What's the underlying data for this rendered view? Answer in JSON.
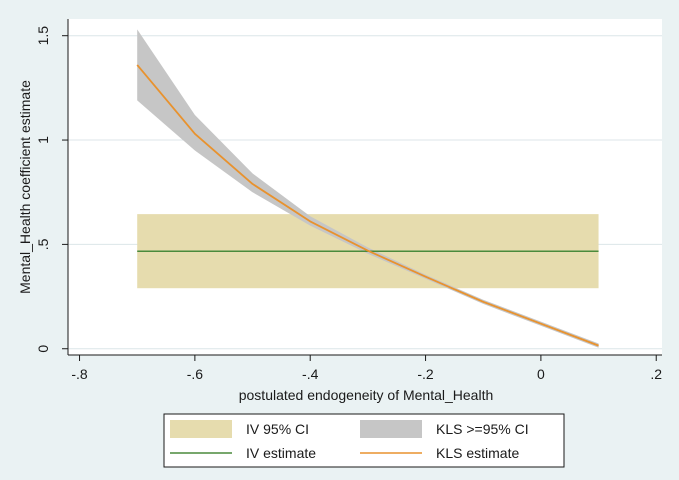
{
  "chart_data": {
    "type": "line",
    "title": "",
    "xlabel": "postulated endogeneity of Mental_Health",
    "ylabel": "Mental_Health coefficient estimate",
    "xlim": [
      -0.82,
      0.21
    ],
    "ylim": [
      -0.03,
      1.58
    ],
    "x_ticks": [
      -0.8,
      -0.6,
      -0.4,
      -0.2,
      0,
      0.2
    ],
    "x_tick_labels": [
      "-.8",
      "-.6",
      "-.4",
      "-.2",
      "0",
      ".2"
    ],
    "y_ticks": [
      0,
      0.5,
      1,
      1.5
    ],
    "y_tick_labels": [
      "0",
      ".5",
      "1",
      "1.5"
    ],
    "grid": "horizontal",
    "colors": {
      "background": "#eaf2f3",
      "plot_bg": "#ffffff",
      "grid": "#dce6e8",
      "iv_ci": "#e6dcae",
      "kls_ci": "#c6c6c6",
      "iv_estimate": "#4a8a3c",
      "kls_estimate": "#e8922e"
    },
    "series": [
      {
        "name": "IV estimate",
        "kind": "hline",
        "x": [
          -0.7,
          0.1
        ],
        "y": 0.467
      },
      {
        "name": "IV 95% CI",
        "kind": "band",
        "x": [
          -0.7,
          0.1
        ],
        "lower": 0.29,
        "upper": 0.645
      },
      {
        "name": "KLS estimate",
        "kind": "line",
        "x": [
          -0.7,
          -0.6,
          -0.5,
          -0.4,
          -0.3,
          -0.2,
          -0.1,
          0,
          0.1
        ],
        "values": [
          1.36,
          1.03,
          0.79,
          0.61,
          0.47,
          0.345,
          0.225,
          0.12,
          0.015
        ]
      },
      {
        "name": "KLS >=95% CI",
        "kind": "band",
        "x": [
          -0.7,
          -0.6,
          -0.5,
          -0.4,
          -0.3,
          -0.2,
          -0.1,
          0,
          0.1
        ],
        "lower": [
          1.19,
          0.95,
          0.75,
          0.59,
          0.455,
          0.335,
          0.215,
          0.11,
          0.005
        ],
        "upper": [
          1.53,
          1.12,
          0.84,
          0.635,
          0.485,
          0.355,
          0.235,
          0.13,
          0.025
        ]
      }
    ],
    "legend": {
      "position": "bottom",
      "entries": [
        {
          "label": "IV 95% CI",
          "series": "IV 95% CI",
          "symbol": "area"
        },
        {
          "label": "KLS >=95% CI",
          "series": "KLS >=95% CI",
          "symbol": "area"
        },
        {
          "label": "IV estimate",
          "series": "IV estimate",
          "symbol": "line"
        },
        {
          "label": "KLS estimate",
          "series": "KLS estimate",
          "symbol": "line"
        }
      ]
    }
  }
}
